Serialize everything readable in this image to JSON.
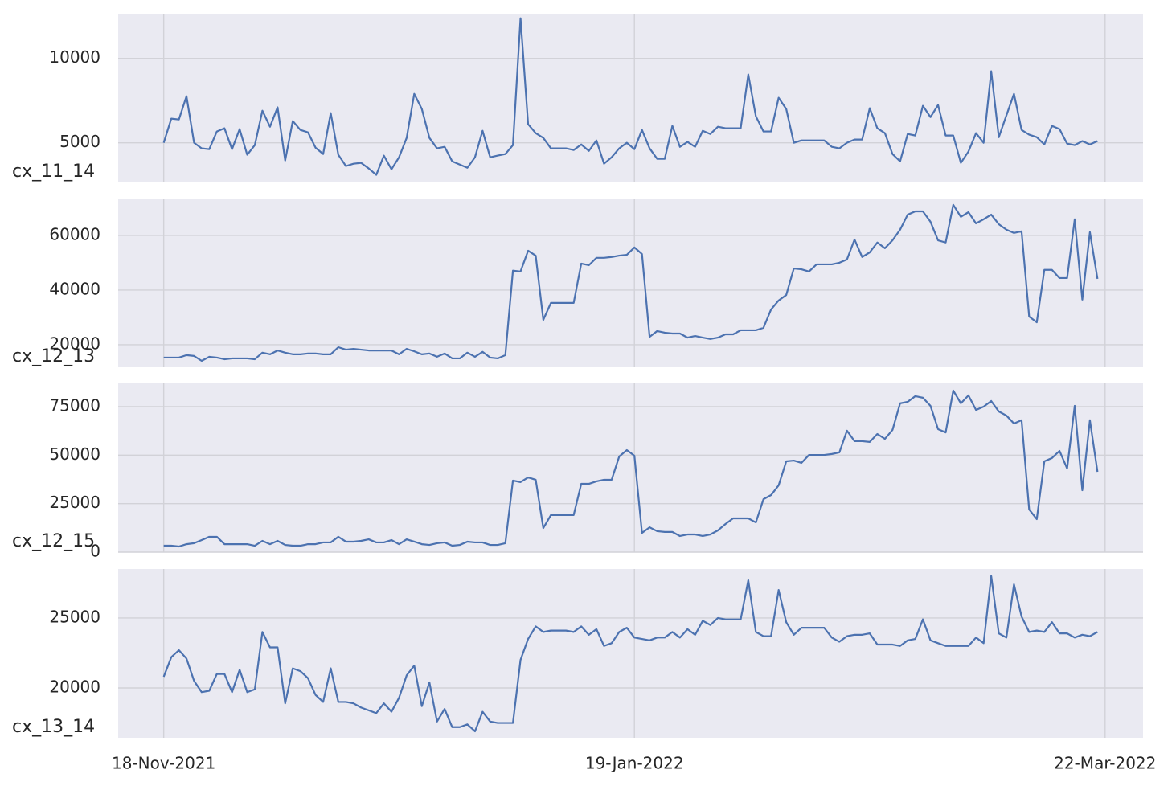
{
  "chart_data": {
    "type": "line",
    "grid": true,
    "x": [
      "2021-11-18",
      "2021-11-19",
      "2021-11-20",
      "2021-11-21",
      "2021-11-22",
      "2021-11-23",
      "2021-11-24",
      "2021-11-25",
      "2021-11-26",
      "2021-11-27",
      "2021-11-28",
      "2021-11-29",
      "2021-11-30",
      "2021-12-01",
      "2021-12-02",
      "2021-12-03",
      "2021-12-04",
      "2021-12-05",
      "2021-12-06",
      "2021-12-07",
      "2021-12-08",
      "2021-12-09",
      "2021-12-10",
      "2021-12-11",
      "2021-12-12",
      "2021-12-13",
      "2021-12-14",
      "2021-12-15",
      "2021-12-16",
      "2021-12-17",
      "2021-12-18",
      "2021-12-19",
      "2021-12-20",
      "2021-12-21",
      "2021-12-22",
      "2021-12-23",
      "2021-12-24",
      "2021-12-25",
      "2021-12-26",
      "2021-12-27",
      "2021-12-28",
      "2021-12-29",
      "2021-12-30",
      "2021-12-31",
      "2022-01-01",
      "2022-01-02",
      "2022-01-03",
      "2022-01-04",
      "2022-01-05",
      "2022-01-06",
      "2022-01-07",
      "2022-01-08",
      "2022-01-09",
      "2022-01-10",
      "2022-01-11",
      "2022-01-12",
      "2022-01-13",
      "2022-01-14",
      "2022-01-15",
      "2022-01-16",
      "2022-01-17",
      "2022-01-18",
      "2022-01-19",
      "2022-01-20",
      "2022-01-21",
      "2022-01-22",
      "2022-01-23",
      "2022-01-24",
      "2022-01-25",
      "2022-01-26",
      "2022-01-27",
      "2022-01-28",
      "2022-01-29",
      "2022-01-30",
      "2022-01-31",
      "2022-02-01",
      "2022-02-02",
      "2022-02-03",
      "2022-02-04",
      "2022-02-05",
      "2022-02-06",
      "2022-02-07",
      "2022-02-08",
      "2022-02-09",
      "2022-02-10",
      "2022-02-11",
      "2022-02-12",
      "2022-02-13",
      "2022-02-14",
      "2022-02-15",
      "2022-02-16",
      "2022-02-17",
      "2022-02-18",
      "2022-02-19",
      "2022-02-20",
      "2022-02-21",
      "2022-02-22",
      "2022-02-23",
      "2022-02-24",
      "2022-02-25",
      "2022-02-26",
      "2022-02-27",
      "2022-02-28",
      "2022-03-01",
      "2022-03-02",
      "2022-03-03",
      "2022-03-04",
      "2022-03-05",
      "2022-03-06",
      "2022-03-07",
      "2022-03-08",
      "2022-03-09",
      "2022-03-10",
      "2022-03-11",
      "2022-03-12",
      "2022-03-13",
      "2022-03-14",
      "2022-03-15",
      "2022-03-16",
      "2022-03-17",
      "2022-03-18",
      "2022-03-19",
      "2022-03-20",
      "2022-03-21"
    ],
    "xlim": [
      "2021-11-12",
      "2022-03-27"
    ],
    "xticks": [
      {
        "value": "2021-11-18",
        "label": "18-Nov-2021"
      },
      {
        "value": "2022-01-19",
        "label": "19-Jan-2022"
      },
      {
        "value": "2022-03-22",
        "label": "22-Mar-2022"
      }
    ],
    "series": [
      {
        "name": "cx_11_14",
        "color": "#4c72b0",
        "ylim": [
          2650,
          12650
        ],
        "yticks": [
          5000,
          10000
        ],
        "values": [
          5000,
          6430,
          6380,
          7760,
          5000,
          4670,
          4620,
          5670,
          5860,
          4620,
          5810,
          4290,
          4860,
          6900,
          5950,
          7100,
          3950,
          6290,
          5760,
          5620,
          4710,
          4330,
          6760,
          4290,
          3620,
          3760,
          3810,
          3480,
          3100,
          4240,
          3430,
          4140,
          5290,
          7900,
          7000,
          5290,
          4670,
          4760,
          3900,
          3710,
          3520,
          4140,
          5710,
          4140,
          4240,
          4330,
          4860,
          12380,
          6100,
          5570,
          5290,
          4670,
          4670,
          4670,
          4570,
          4900,
          4520,
          5140,
          3760,
          4140,
          4670,
          5000,
          4620,
          5760,
          4670,
          4050,
          4050,
          6000,
          4760,
          5050,
          4760,
          5710,
          5520,
          5950,
          5860,
          5860,
          5860,
          9050,
          6570,
          5670,
          5670,
          7670,
          7000,
          5000,
          5140,
          5140,
          5140,
          5140,
          4760,
          4670,
          5000,
          5190,
          5190,
          7050,
          5860,
          5570,
          4330,
          3900,
          5520,
          5430,
          7190,
          6520,
          7240,
          5430,
          5430,
          3810,
          4480,
          5570,
          5000,
          9240,
          5330,
          6620,
          7900,
          5760,
          5480,
          5330,
          4900,
          6000,
          5810,
          4950,
          4860,
          5100,
          4900,
          5100
        ]
      },
      {
        "name": "cx_12_13",
        "color": "#4c72b0",
        "ylim": [
          11750,
          73500
        ],
        "yticks": [
          20000,
          40000,
          60000
        ],
        "values": [
          15300,
          15300,
          15300,
          16200,
          15900,
          14100,
          15600,
          15300,
          14700,
          15000,
          15000,
          15000,
          14700,
          17100,
          16500,
          17900,
          17100,
          16500,
          16500,
          16800,
          16800,
          16500,
          16500,
          19100,
          18200,
          18500,
          18200,
          17900,
          17900,
          17900,
          17900,
          16500,
          18500,
          17600,
          16500,
          16800,
          15600,
          16800,
          15000,
          15000,
          17100,
          15600,
          17400,
          15300,
          15000,
          16200,
          47100,
          46800,
          54400,
          52600,
          29100,
          35300,
          35300,
          35300,
          35300,
          49700,
          49100,
          51800,
          51800,
          52100,
          52600,
          52900,
          55600,
          53200,
          22900,
          25000,
          24400,
          24100,
          24100,
          22600,
          23200,
          22600,
          22100,
          22600,
          23800,
          23800,
          25300,
          25300,
          25300,
          26200,
          32900,
          36200,
          38200,
          47900,
          47600,
          46800,
          49400,
          49400,
          49400,
          50000,
          51200,
          58500,
          52100,
          53800,
          57400,
          55300,
          58200,
          62100,
          67600,
          68800,
          68800,
          65000,
          58200,
          57400,
          71200,
          66800,
          68500,
          64400,
          65900,
          67600,
          64100,
          62100,
          60900,
          61500,
          30300,
          28200,
          47400,
          47400,
          44400,
          44400,
          65900,
          36500,
          61200,
          44100
        ]
      },
      {
        "name": "cx_12_15",
        "color": "#4c72b0",
        "ylim": [
          0,
          87000
        ],
        "yticks": [
          0,
          25000,
          50000,
          75000
        ],
        "values": [
          3300,
          3300,
          2900,
          4100,
          4600,
          6200,
          7900,
          7900,
          4100,
          4100,
          4100,
          4100,
          3300,
          5800,
          4100,
          5800,
          3700,
          3300,
          3300,
          4100,
          4100,
          5000,
          5000,
          7900,
          5400,
          5400,
          5800,
          6600,
          5000,
          5000,
          6200,
          4100,
          6600,
          5400,
          4100,
          3700,
          4600,
          5000,
          3300,
          3700,
          5400,
          5000,
          5000,
          3700,
          3700,
          4600,
          36900,
          36100,
          38500,
          37300,
          12400,
          19100,
          19100,
          19100,
          19100,
          35200,
          35200,
          36500,
          37300,
          37300,
          49300,
          52600,
          49700,
          9900,
          12800,
          10800,
          10400,
          10400,
          8300,
          9100,
          9100,
          8300,
          9100,
          11200,
          14500,
          17400,
          17400,
          17400,
          15300,
          27300,
          29400,
          34400,
          46800,
          47200,
          46000,
          50100,
          50100,
          50100,
          50600,
          51400,
          62600,
          57200,
          57200,
          56800,
          60900,
          58400,
          63000,
          76700,
          77500,
          80400,
          79600,
          75400,
          63400,
          61700,
          83300,
          76700,
          80800,
          73300,
          75000,
          77900,
          72500,
          70400,
          66300,
          68000,
          22000,
          17000,
          46800,
          48500,
          52200,
          43100,
          75400,
          31900,
          68000,
          41400
        ]
      },
      {
        "name": "cx_13_14",
        "color": "#4c72b0",
        "ylim": [
          16440,
          28500
        ],
        "yticks": [
          20000,
          25000
        ],
        "values": [
          20800,
          22200,
          22700,
          22100,
          20500,
          19700,
          19800,
          21000,
          21000,
          19700,
          21300,
          19700,
          19900,
          24000,
          22900,
          22900,
          18900,
          21400,
          21200,
          20700,
          19500,
          19000,
          21400,
          19000,
          19000,
          18900,
          18600,
          18400,
          18200,
          18900,
          18300,
          19300,
          20900,
          21600,
          18700,
          20400,
          17600,
          18500,
          17200,
          17200,
          17400,
          16900,
          18300,
          17600,
          17500,
          17500,
          17500,
          22000,
          23500,
          24400,
          24000,
          24100,
          24100,
          24100,
          24000,
          24400,
          23800,
          24200,
          23000,
          23200,
          24000,
          24300,
          23600,
          23500,
          23400,
          23600,
          23600,
          24000,
          23600,
          24200,
          23800,
          24800,
          24500,
          25000,
          24900,
          24900,
          24900,
          27700,
          24000,
          23700,
          23700,
          27000,
          24700,
          23800,
          24300,
          24300,
          24300,
          24300,
          23600,
          23300,
          23700,
          23800,
          23800,
          23900,
          23100,
          23100,
          23100,
          23000,
          23400,
          23500,
          24900,
          23400,
          23200,
          23000,
          23000,
          23000,
          23000,
          23600,
          23200,
          28000,
          23900,
          23600,
          27400,
          25100,
          24000,
          24100,
          24000,
          24700,
          23900,
          23900,
          23600,
          23800,
          23700,
          24000
        ]
      }
    ]
  }
}
